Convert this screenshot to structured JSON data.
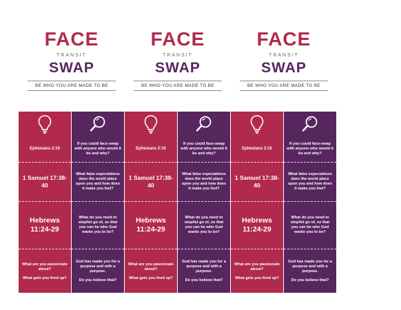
{
  "header": {
    "face": "FACE",
    "transit": "TRANSIT",
    "swap": "SWAP",
    "tagline": "BE WHO YOU ARE MADE TO BE"
  },
  "colors": {
    "red": "#b12a4d",
    "purple": "#57265f"
  },
  "cards": {
    "red": {
      "icon": "lightbulb-icon",
      "ref1": "Ephesians 2:10",
      "ref2": "1 Samuel 17:38-40",
      "ref3": "Hebrews 11:24-29",
      "q1": "What are you passionate about?",
      "q2": "What gets you fired up?"
    },
    "purple": {
      "icon": "magnifier-icon",
      "q1": "If you could face-swap with anyone who would it be and why?",
      "q2": "What false expectations does the world place upon you and how does it make you feel?",
      "q3": "What do you need to stop/let go of, so that you can be who God wants you to be?",
      "q4": "God has made you for a purpose and with a purpose.",
      "q5": "Do you believe that?"
    }
  }
}
